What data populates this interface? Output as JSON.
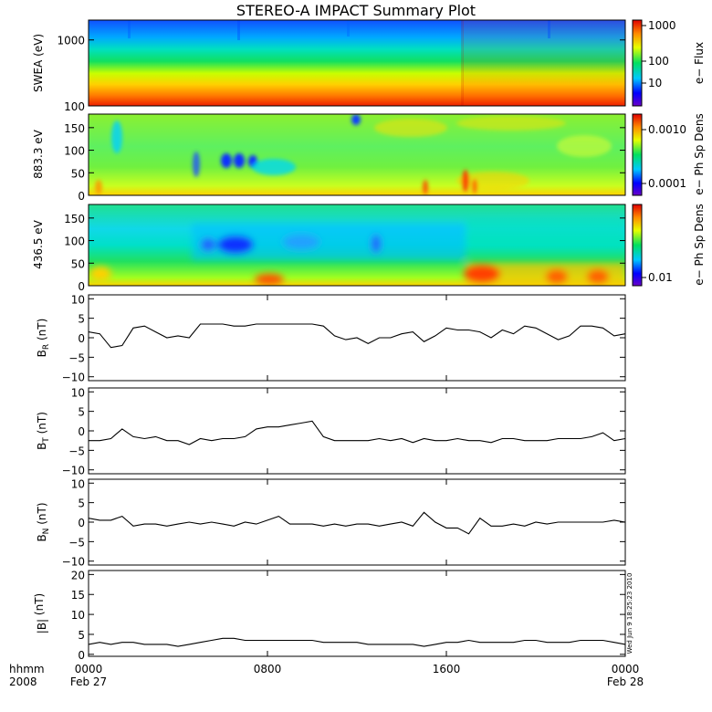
{
  "title": "STEREO-A IMPACT Summary Plot",
  "footer": {
    "row1": "hhmm",
    "row2": "2008",
    "date_start": "Feb 27",
    "date_end": "Feb 28"
  },
  "stamp": "Wed Jun  9 18:25:23 2010",
  "chart_data": [
    {
      "type": "heatmap",
      "ylabel": "SWEA (eV)",
      "y_scale": "log",
      "ylim": [
        100,
        2000
      ],
      "y_ticks": [
        "1000",
        "100"
      ],
      "colorbar": {
        "label": "e− Flux",
        "scale": "log",
        "ticks": [
          "1000",
          "100",
          "10"
        ]
      },
      "description_values": "energy spectrogram: high flux (red) below ~300 eV, falling to low flux (blue) above ~1500 eV; slight increase after 1600"
    },
    {
      "type": "heatmap",
      "ylabel": "883.3 eV",
      "ylim": [
        0,
        180
      ],
      "y_ticks": [
        "150",
        "100",
        "50",
        "0"
      ],
      "colorbar": {
        "label": "e− Ph Sp Dens",
        "scale": "log",
        "ticks": [
          "0.0010",
          "0.0001"
        ]
      }
    },
    {
      "type": "heatmap",
      "ylabel": "436.5 eV",
      "ylim": [
        0,
        180
      ],
      "y_ticks": [
        "150",
        "100",
        "50",
        "0"
      ],
      "colorbar": {
        "label": "e− Ph Sp Dens",
        "scale": "log",
        "ticks": [
          "0.01"
        ]
      }
    },
    {
      "type": "line",
      "ylabel_main": "B",
      "ylabel_sub": "R",
      "ylabel_unit": " (nT)",
      "ylim": [
        -11,
        11
      ],
      "y_ticks": [
        "10",
        "5",
        "0",
        "−5",
        "−10"
      ],
      "x_ticks": [
        "0000",
        "0800",
        "1600",
        "0000"
      ],
      "x": [
        0,
        0.5,
        1,
        1.5,
        2,
        2.5,
        3,
        3.5,
        4,
        4.5,
        5,
        5.5,
        6,
        6.5,
        7,
        7.5,
        8,
        8.5,
        9,
        9.5,
        10,
        10.5,
        11,
        11.5,
        12,
        12.5,
        13,
        13.5,
        14,
        14.5,
        15,
        15.5,
        16,
        16.5,
        17,
        17.5,
        18,
        18.5,
        19,
        19.5,
        20,
        20.5,
        21,
        21.5,
        22,
        22.5,
        23,
        23.5,
        24
      ],
      "values": [
        1.5,
        1.0,
        -2.5,
        -2.0,
        2.5,
        3.0,
        1.5,
        0,
        0.5,
        0,
        3.5,
        3.5,
        3.5,
        3.0,
        3.0,
        3.5,
        3.5,
        3.5,
        3.5,
        3.5,
        3.5,
        3.0,
        0.5,
        -0.5,
        0,
        -1.5,
        0,
        0,
        1.0,
        1.5,
        -1.0,
        0.5,
        2.5,
        2.0,
        2.0,
        1.5,
        0,
        2.0,
        1.0,
        3.0,
        2.5,
        1.0,
        -0.5,
        0.5,
        3.0,
        3.0,
        2.5,
        0.5,
        1.0
      ]
    },
    {
      "type": "line",
      "ylabel_main": "B",
      "ylabel_sub": "T",
      "ylabel_unit": " (nT)",
      "ylim": [
        -11,
        11
      ],
      "y_ticks": [
        "10",
        "5",
        "0",
        "−5",
        "−10"
      ],
      "x": [
        0,
        0.5,
        1,
        1.5,
        2,
        2.5,
        3,
        3.5,
        4,
        4.5,
        5,
        5.5,
        6,
        6.5,
        7,
        7.5,
        8,
        8.5,
        9,
        9.5,
        10,
        10.5,
        11,
        11.5,
        12,
        12.5,
        13,
        13.5,
        14,
        14.5,
        15,
        15.5,
        16,
        16.5,
        17,
        17.5,
        18,
        18.5,
        19,
        19.5,
        20,
        20.5,
        21,
        21.5,
        22,
        22.5,
        23,
        23.5,
        24
      ],
      "values": [
        -2.5,
        -2.5,
        -2.0,
        0.5,
        -1.5,
        -2.0,
        -1.5,
        -2.5,
        -2.5,
        -3.5,
        -2.0,
        -2.5,
        -2.0,
        -2.0,
        -1.5,
        0.5,
        1.0,
        1.0,
        1.5,
        2.0,
        2.5,
        -1.5,
        -2.5,
        -2.5,
        -2.5,
        -2.5,
        -2.0,
        -2.5,
        -2.0,
        -3.0,
        -2.0,
        -2.5,
        -2.5,
        -2.0,
        -2.5,
        -2.5,
        -3.0,
        -2.0,
        -2.0,
        -2.5,
        -2.5,
        -2.5,
        -2.0,
        -2.0,
        -2.0,
        -1.5,
        -0.5,
        -2.5,
        -2.0
      ]
    },
    {
      "type": "line",
      "ylabel_main": "B",
      "ylabel_sub": "N",
      "ylabel_unit": " (nT)",
      "ylim": [
        -11,
        11
      ],
      "y_ticks": [
        "10",
        "5",
        "0",
        "−5",
        "−10"
      ],
      "x": [
        0,
        0.5,
        1,
        1.5,
        2,
        2.5,
        3,
        3.5,
        4,
        4.5,
        5,
        5.5,
        6,
        6.5,
        7,
        7.5,
        8,
        8.5,
        9,
        9.5,
        10,
        10.5,
        11,
        11.5,
        12,
        12.5,
        13,
        13.5,
        14,
        14.5,
        15,
        15.5,
        16,
        16.5,
        17,
        17.5,
        18,
        18.5,
        19,
        19.5,
        20,
        20.5,
        21,
        21.5,
        22,
        22.5,
        23,
        23.5,
        24
      ],
      "values": [
        1.0,
        0.5,
        0.5,
        1.5,
        -1.0,
        -0.5,
        -0.5,
        -1.0,
        -0.5,
        0,
        -0.5,
        0,
        -0.5,
        -1.0,
        0,
        -0.5,
        0.5,
        1.5,
        -0.5,
        -0.5,
        -0.5,
        -1.0,
        -0.5,
        -1.0,
        -0.5,
        -0.5,
        -1.0,
        -0.5,
        0,
        -1.0,
        2.5,
        0,
        -1.5,
        -1.5,
        -3.0,
        1.0,
        -1.0,
        -1.0,
        -0.5,
        -1.0,
        0,
        -0.5,
        0,
        0,
        0,
        0,
        0,
        0.5,
        0
      ]
    },
    {
      "type": "line",
      "ylabel_main": "|B|",
      "ylabel_sub": "",
      "ylabel_unit": " (nT)",
      "ylim": [
        -0.5,
        21
      ],
      "y_ticks": [
        "20",
        "15",
        "10",
        "5",
        "0"
      ],
      "x": [
        0,
        0.5,
        1,
        1.5,
        2,
        2.5,
        3,
        3.5,
        4,
        4.5,
        5,
        5.5,
        6,
        6.5,
        7,
        7.5,
        8,
        8.5,
        9,
        9.5,
        10,
        10.5,
        11,
        11.5,
        12,
        12.5,
        13,
        13.5,
        14,
        14.5,
        15,
        15.5,
        16,
        16.5,
        17,
        17.5,
        18,
        18.5,
        19,
        19.5,
        20,
        20.5,
        21,
        21.5,
        22,
        22.5,
        23,
        23.5,
        24
      ],
      "values": [
        2.5,
        3.0,
        2.5,
        3.0,
        3.0,
        2.5,
        2.5,
        2.5,
        2.0,
        2.5,
        3.0,
        3.5,
        4.0,
        4.0,
        3.5,
        3.5,
        3.5,
        3.5,
        3.5,
        3.5,
        3.5,
        3.0,
        3.0,
        3.0,
        3.0,
        2.5,
        2.5,
        2.5,
        2.5,
        2.5,
        2.0,
        2.5,
        3.0,
        3.0,
        3.5,
        3.0,
        3.0,
        3.0,
        3.0,
        3.5,
        3.5,
        3.0,
        3.0,
        3.0,
        3.5,
        3.5,
        3.5,
        3.0,
        2.5
      ]
    }
  ]
}
